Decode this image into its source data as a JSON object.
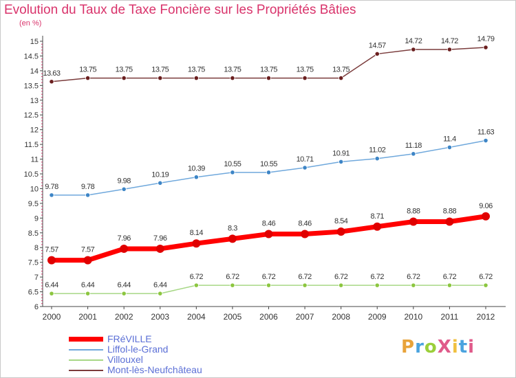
{
  "title": "Evolution du Taux de Taxe Foncière sur les Propriétés Bâties",
  "unit": "(en %)",
  "logo": {
    "text": "ProXiti",
    "colors": [
      "#e8a33a",
      "#4aa3df",
      "#9bcf3a",
      "#e05a8a",
      "#f0c040",
      "#4aa3df",
      "#e05a8a"
    ]
  },
  "chart_data": {
    "type": "line",
    "title": "Evolution du Taux de Taxe Foncière sur les Propriétés Bâties",
    "ylabel": "(en %)",
    "xlabel": "",
    "x": [
      "2000",
      "2001",
      "2002",
      "2003",
      "2004",
      "2005",
      "2006",
      "2007",
      "2008",
      "2009",
      "2010",
      "2011",
      "2012"
    ],
    "ylim": [
      6,
      15
    ],
    "yticks": [
      "6",
      "6.5",
      "7",
      "7.5",
      "8",
      "8.5",
      "9",
      "9.5",
      "10",
      "10.5",
      "11",
      "11.5",
      "12",
      "12.5",
      "13",
      "13.5",
      "14",
      "14.5",
      "15"
    ],
    "grid": false,
    "legend": "bottom-left",
    "series": [
      {
        "name": "FRéVILLE",
        "color": "#ff0000",
        "width": 7,
        "point": "#e00000",
        "values": [
          7.57,
          7.57,
          7.96,
          7.96,
          8.14,
          8.3,
          8.46,
          8.46,
          8.54,
          8.71,
          8.88,
          8.88,
          9.06
        ],
        "labels": [
          "7.57",
          "7.57",
          "7.96",
          "7.96",
          "8.14",
          "8.3",
          "8.46",
          "8.46",
          "8.54",
          "8.71",
          "8.88",
          "8.88",
          "9.06"
        ]
      },
      {
        "name": "Liffol-le-Grand",
        "color": "#6fa8dc",
        "width": 1.5,
        "point": "#3d85c6",
        "values": [
          9.78,
          9.78,
          9.98,
          10.19,
          10.39,
          10.55,
          10.55,
          10.71,
          10.91,
          11.02,
          11.18,
          11.4,
          11.63
        ],
        "labels": [
          "9.78",
          "9.78",
          "9.98",
          "10.19",
          "10.39",
          "10.55",
          "10.55",
          "10.71",
          "10.91",
          "11.02",
          "11.18",
          "11.4",
          "11.63"
        ]
      },
      {
        "name": "Villouxel",
        "color": "#a6d785",
        "width": 1.5,
        "point": "#8cc63f",
        "values": [
          6.44,
          6.44,
          6.44,
          6.44,
          6.72,
          6.72,
          6.72,
          6.72,
          6.72,
          6.72,
          6.72,
          6.72,
          6.72
        ],
        "labels": [
          "6.44",
          "6.44",
          "6.44",
          "6.44",
          "6.72",
          "6.72",
          "6.72",
          "6.72",
          "6.72",
          "6.72",
          "6.72",
          "6.72",
          "6.72"
        ]
      },
      {
        "name": "Mont-lès-Neufchâteau",
        "color": "#7a3b3b",
        "width": 1.5,
        "point": "#6b1f1f",
        "values": [
          13.63,
          13.75,
          13.75,
          13.75,
          13.75,
          13.75,
          13.75,
          13.75,
          13.75,
          14.57,
          14.72,
          14.72,
          14.79
        ],
        "labels": [
          "13.63",
          "13.75",
          "13.75",
          "13.75",
          "13.75",
          "13.75",
          "13.75",
          "13.75",
          "13.75",
          "14.57",
          "14.72",
          "14.72",
          "14.79"
        ]
      }
    ]
  }
}
